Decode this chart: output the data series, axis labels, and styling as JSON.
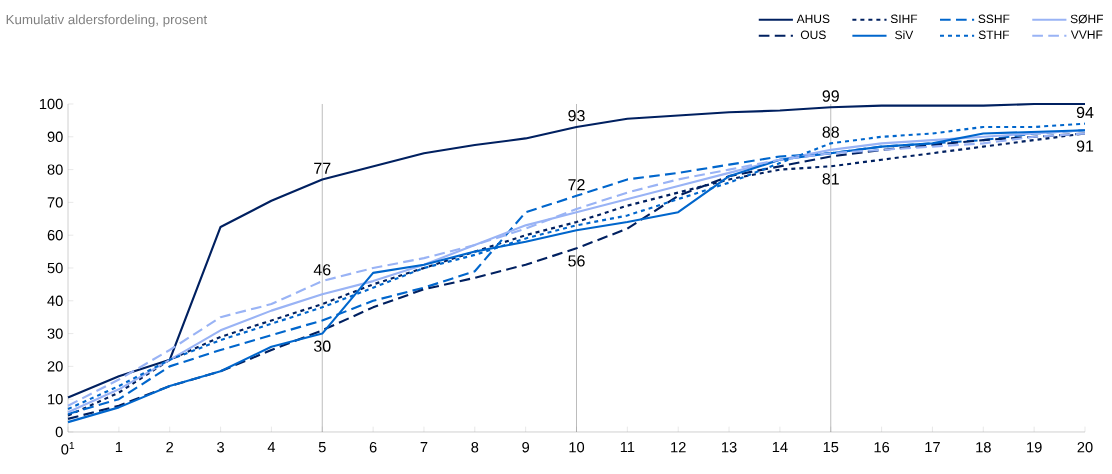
{
  "chart_data": {
    "type": "line",
    "subtitle": "Kumulativ aldersfordeling, prosent",
    "x": [
      0,
      1,
      2,
      3,
      4,
      5,
      6,
      7,
      8,
      9,
      10,
      11,
      12,
      13,
      14,
      15,
      16,
      17,
      18,
      19,
      20
    ],
    "xlim": [
      0,
      20
    ],
    "xticks": [
      {
        "value": 0,
        "label": "0$^{1}$"
      },
      1,
      2,
      3,
      4,
      5,
      6,
      7,
      8,
      9,
      10,
      11,
      12,
      13,
      14,
      15,
      16,
      17,
      18,
      19,
      20
    ],
    "ylim": [
      0,
      100
    ],
    "yticks": [
      0,
      10,
      20,
      30,
      40,
      50,
      60,
      70,
      80,
      90,
      100
    ],
    "legend": "top right",
    "marker": "none",
    "grid": false,
    "ref_lines": [
      {
        "axis": "x",
        "value": 5,
        "color": "#808080"
      },
      {
        "axis": "x",
        "value": 10,
        "color": "#808080"
      },
      {
        "axis": "x",
        "value": 15,
        "color": "#808080"
      }
    ],
    "annotations": [
      {
        "text": "77",
        "x": 5,
        "y": 77
      },
      {
        "text": "46",
        "x": 5,
        "y": 46
      },
      {
        "text": "30",
        "x": 5,
        "y": 30
      },
      {
        "text": "93",
        "x": 10,
        "y": 93
      },
      {
        "text": "72",
        "x": 10,
        "y": 72
      },
      {
        "text": "56",
        "x": 10,
        "y": 56
      },
      {
        "text": "99",
        "x": 15,
        "y": 99
      },
      {
        "text": "88",
        "x": 15,
        "y": 88
      },
      {
        "text": "81",
        "x": 15,
        "y": 81
      },
      {
        "text": "94",
        "x": 20,
        "y": 94
      },
      {
        "text": "91",
        "x": 20,
        "y": 91
      }
    ],
    "series": [
      {
        "name": "AHUS",
        "color": "#002060",
        "line_style": "solid",
        "values": [
          10.5,
          17,
          22,
          62.5,
          70.5,
          77,
          81,
          85,
          87.5,
          89.5,
          93,
          95.5,
          96.5,
          97.5,
          98,
          99,
          99.5,
          99.5,
          99.5,
          100,
          100
        ]
      },
      {
        "name": "SIHF",
        "color": "#002060",
        "line_style": "dotted",
        "values": [
          5,
          12,
          22,
          29,
          34,
          39,
          45,
          50,
          55,
          60,
          64,
          69,
          73,
          77,
          80,
          81,
          83,
          85,
          87,
          89,
          91
        ]
      },
      {
        "name": "SSHF",
        "color": "#0066cc",
        "line_style": "dashed",
        "values": [
          5.5,
          10,
          20,
          25,
          29.5,
          34,
          40,
          44,
          49,
          67,
          72,
          77,
          79,
          81.5,
          84,
          85,
          87,
          88,
          89,
          91,
          92
        ]
      },
      {
        "name": "SØHF",
        "color": "#99b3f5",
        "line_style": "solid",
        "values": [
          6,
          13,
          22,
          31,
          37,
          42,
          46,
          51,
          57,
          63,
          67,
          71,
          75,
          79,
          83,
          86,
          88,
          89,
          90,
          91,
          92
        ]
      },
      {
        "name": "OUS",
        "color": "#002060",
        "line_style": "dashed",
        "values": [
          4,
          8,
          14,
          18.5,
          25,
          31,
          38,
          43.5,
          47,
          51,
          56,
          62,
          72,
          78,
          81,
          84,
          86,
          87.5,
          89,
          90,
          91
        ]
      },
      {
        "name": "SiV",
        "color": "#0066cc",
        "line_style": "solid",
        "values": [
          3,
          7.5,
          14,
          18.5,
          26,
          30,
          48.5,
          51,
          55,
          58,
          61.5,
          64,
          67,
          78,
          83,
          85,
          87,
          88,
          91,
          91.5,
          92
        ]
      },
      {
        "name": "STHF",
        "color": "#0066cc",
        "line_style": "dotted",
        "values": [
          7,
          14,
          22,
          28,
          33,
          38,
          44,
          50,
          54,
          59,
          63,
          66,
          71,
          76,
          82,
          88,
          90,
          91,
          93,
          93,
          94
        ]
      },
      {
        "name": "VVHF",
        "color": "#99b3f5",
        "line_style": "dashed",
        "values": [
          8,
          16,
          25,
          35,
          39,
          46,
          50,
          53,
          57,
          62,
          68,
          73,
          77,
          80,
          83,
          85,
          86,
          87,
          88,
          90,
          91
        ]
      }
    ]
  }
}
